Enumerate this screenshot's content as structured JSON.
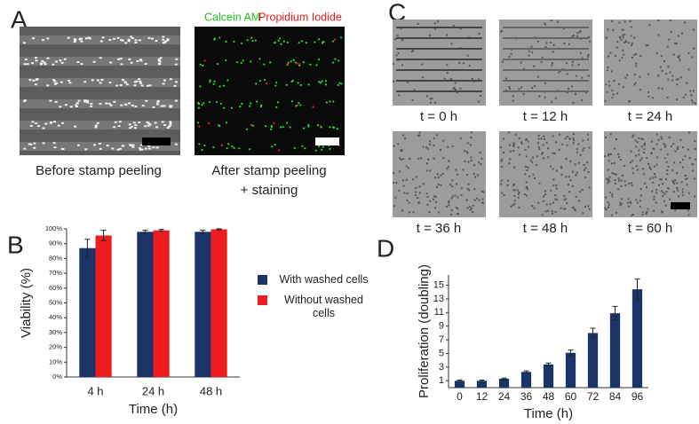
{
  "panels": {
    "a": {
      "label": "A",
      "legend_green": "Calcein AM",
      "legend_red": "Propidium Iodide",
      "caption_before": "Before stamp peeling",
      "caption_after": [
        "After stamp peeling",
        "+ staining"
      ]
    },
    "b": {
      "label": "B"
    },
    "c": {
      "label": "C",
      "captions": [
        "t = 0 h",
        "t = 12 h",
        "t = 24 h",
        "t = 36 h",
        "t = 48 h",
        "t = 60 h"
      ]
    },
    "d": {
      "label": "D"
    }
  },
  "chart_data": [
    {
      "type": "bar",
      "x_label": "Time (h)",
      "y_label": "Viability (%)",
      "categories": [
        "4 h",
        "24 h",
        "48 h"
      ],
      "series": [
        {
          "name": "With washed cells",
          "color": "#1b3468",
          "values": [
            87,
            98,
            98
          ],
          "errors": [
            6,
            1,
            1
          ]
        },
        {
          "name": "Without washed cells",
          "color": "#ee1c1c",
          "values": [
            95.5,
            99,
            99.7
          ],
          "errors": [
            3.5,
            0.6,
            0.3
          ]
        }
      ],
      "ylim": [
        0,
        100
      ],
      "yticks": [
        {
          "value": 0,
          "label": "0%"
        },
        {
          "value": 10,
          "label": "10%"
        },
        {
          "value": 20,
          "label": "20%"
        },
        {
          "value": 30,
          "label": "30%"
        },
        {
          "value": 40,
          "label": "40%"
        },
        {
          "value": 50,
          "label": "50%"
        },
        {
          "value": 60,
          "label": "60%"
        },
        {
          "value": 70,
          "label": "70%"
        },
        {
          "value": 80,
          "label": "80%"
        },
        {
          "value": 90,
          "label": "90%"
        },
        {
          "value": 100,
          "label": "100%"
        }
      ],
      "grid": false
    },
    {
      "type": "bar",
      "x_label": "Time (h)",
      "y_label": "Proliferation (doubling)",
      "categories": [
        "0",
        "12",
        "24",
        "36",
        "48",
        "60",
        "72",
        "84",
        "96"
      ],
      "series": [
        {
          "color": "#1b3468",
          "values": [
            1,
            1,
            1.3,
            2.3,
            3.4,
            5.1,
            8,
            10.9,
            14.4
          ],
          "errors": [
            0.1,
            0.1,
            0.1,
            0.15,
            0.2,
            0.4,
            0.7,
            1,
            1.5
          ]
        }
      ],
      "ylim": [
        0,
        16.5
      ],
      "yticks": [
        1,
        3,
        5,
        7,
        9,
        11,
        13,
        15
      ],
      "grid": false
    }
  ]
}
